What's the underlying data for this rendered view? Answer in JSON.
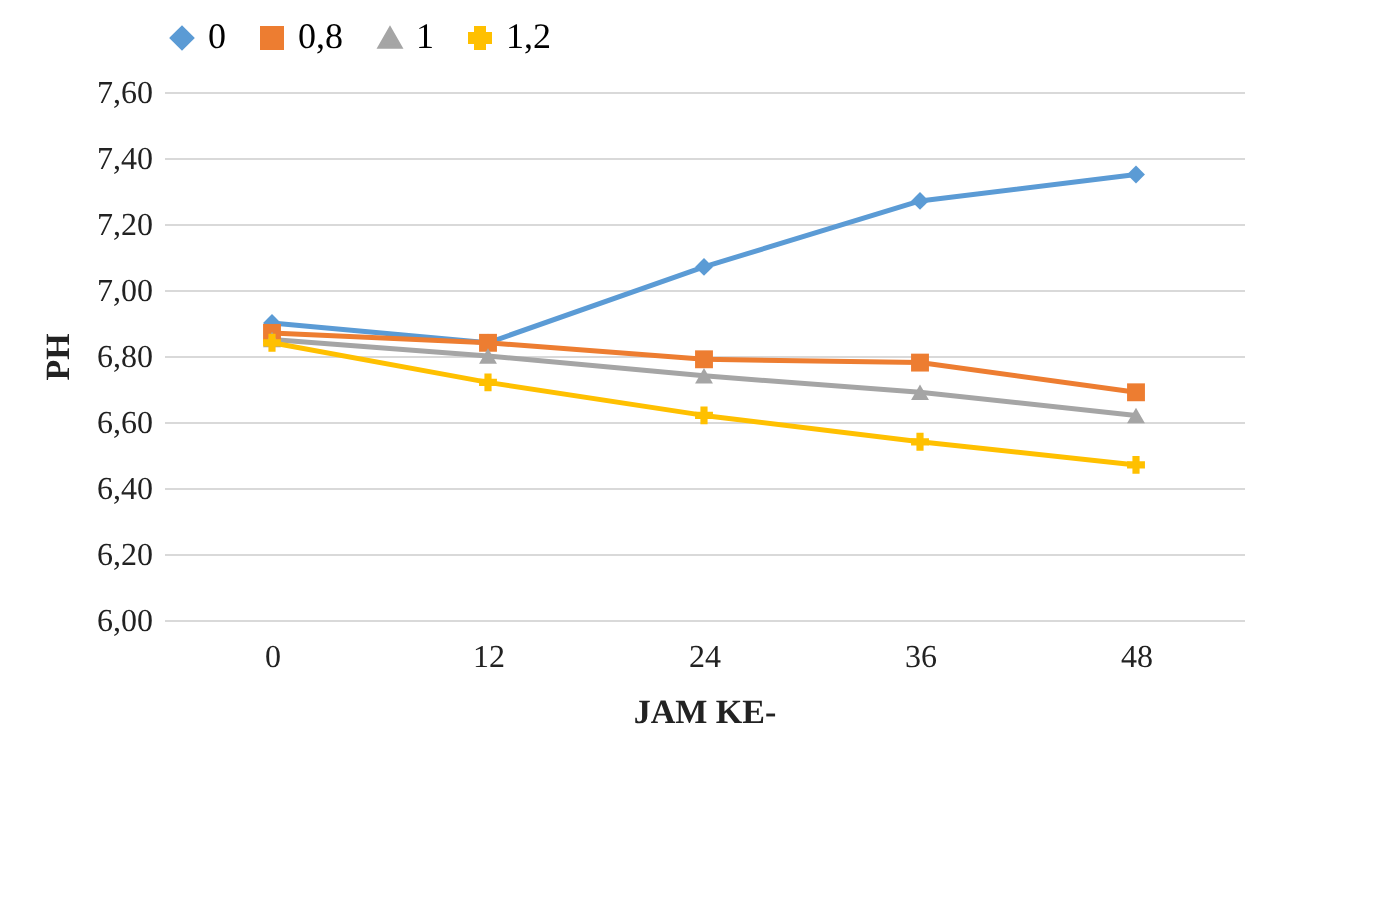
{
  "chart_data": {
    "type": "line",
    "xlabel": "JAM KE-",
    "ylabel": "PH",
    "categories": [
      "0",
      "12",
      "24",
      "36",
      "48"
    ],
    "ylim": [
      6.0,
      7.6
    ],
    "yticks": [
      {
        "value": 6.0,
        "label": "6,00"
      },
      {
        "value": 6.2,
        "label": "6,20"
      },
      {
        "value": 6.4,
        "label": "6,40"
      },
      {
        "value": 6.6,
        "label": "6,60"
      },
      {
        "value": 6.8,
        "label": "6,80"
      },
      {
        "value": 7.0,
        "label": "7,00"
      },
      {
        "value": 7.2,
        "label": "7,20"
      },
      {
        "value": 7.4,
        "label": "7,40"
      },
      {
        "value": 7.6,
        "label": "7,60"
      }
    ],
    "grid": "y",
    "legend": "top",
    "series": [
      {
        "name": "0",
        "color": "#5b9bd5",
        "marker": "diamond",
        "values": [
          6.9,
          6.84,
          7.07,
          7.27,
          7.35
        ]
      },
      {
        "name": "0,8",
        "color": "#ed7d31",
        "marker": "square",
        "values": [
          6.87,
          6.84,
          6.79,
          6.78,
          6.69
        ]
      },
      {
        "name": "1",
        "color": "#a5a5a5",
        "marker": "triangle",
        "values": [
          6.85,
          6.8,
          6.74,
          6.69,
          6.62
        ]
      },
      {
        "name": "1,2",
        "color": "#ffc000",
        "marker": "cross",
        "values": [
          6.84,
          6.72,
          6.62,
          6.54,
          6.47
        ]
      }
    ]
  }
}
